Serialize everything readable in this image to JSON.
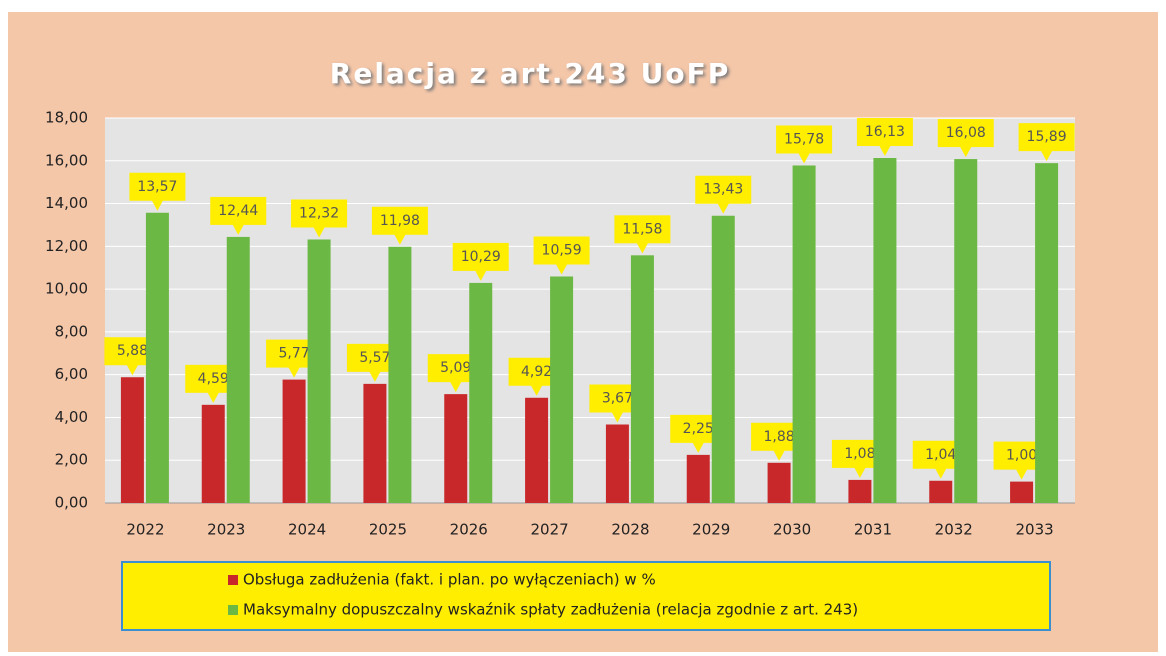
{
  "chart_data": {
    "type": "bar",
    "title": "Relacja z art.243 UoFP",
    "categories": [
      "2022",
      "2023",
      "2024",
      "2025",
      "2026",
      "2027",
      "2028",
      "2029",
      "2030",
      "2031",
      "2032",
      "2033"
    ],
    "series": [
      {
        "name": "Obsługa zadłużenia (fakt. i plan. po wyłączeniach) w %",
        "color": "#c8282a",
        "values": [
          5.88,
          4.59,
          5.77,
          5.57,
          5.09,
          4.92,
          3.67,
          2.25,
          1.88,
          1.08,
          1.04,
          1.0
        ],
        "value_labels": [
          "5,88",
          "4,59",
          "5,77",
          "5,57",
          "5,09",
          "4,92",
          "3,67",
          "2,25",
          "1,88",
          "1,08",
          "1,04",
          "1,00"
        ]
      },
      {
        "name": "Maksymalny dopuszczalny wskaźnik spłaty  zadłużenia (relacja zgodnie z art. 243)",
        "color": "#6cb844",
        "values": [
          13.57,
          12.44,
          12.32,
          11.98,
          10.29,
          10.59,
          11.58,
          13.43,
          15.78,
          16.13,
          16.08,
          15.89
        ],
        "value_labels": [
          "13,57",
          "12,44",
          "12,32",
          "11,98",
          "10,29",
          "10,59",
          "11,58",
          "13,43",
          "15,78",
          "16,13",
          "16,08",
          "15,89"
        ]
      }
    ],
    "ylim": [
      0,
      18
    ],
    "yticks": [
      {
        "value": 0,
        "label": "0,00"
      },
      {
        "value": 2,
        "label": "2,00"
      },
      {
        "value": 4,
        "label": "4,00"
      },
      {
        "value": 6,
        "label": "6,00"
      },
      {
        "value": 8,
        "label": "8,00"
      },
      {
        "value": 10,
        "label": "10,00"
      },
      {
        "value": 12,
        "label": "12,00"
      },
      {
        "value": 14,
        "label": "14,00"
      },
      {
        "value": 16,
        "label": "16,00"
      },
      {
        "value": 18,
        "label": "18,00"
      }
    ],
    "grid": true,
    "legend": "bottom"
  }
}
